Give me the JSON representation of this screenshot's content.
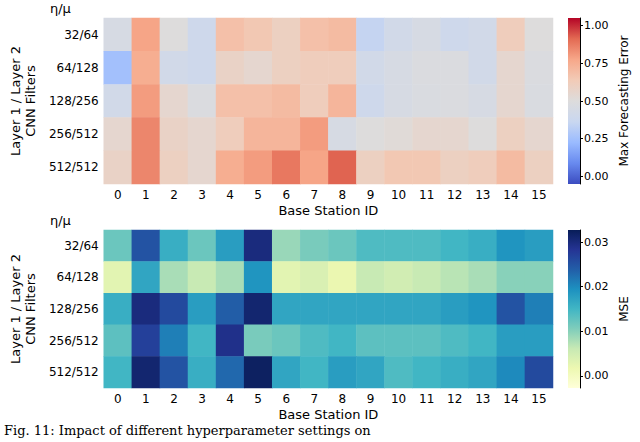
{
  "chart_data": [
    {
      "type": "heatmap",
      "x_label": "Base Station ID",
      "y_label": "Layer 1 / Layer 2\nCNN Filters",
      "y_title": "η/μ",
      "categories": [
        0,
        1,
        2,
        3,
        4,
        5,
        6,
        7,
        8,
        9,
        10,
        11,
        12,
        13,
        14,
        15
      ],
      "rows": [
        "32/64",
        "64/128",
        "128/256",
        "256/512",
        "512/512"
      ],
      "cells": [
        [
          0.45,
          0.78,
          0.5,
          0.4,
          0.68,
          0.65,
          0.6,
          0.68,
          0.7,
          0.35,
          0.42,
          0.45,
          0.4,
          0.42,
          0.62,
          0.5
        ],
        [
          0.25,
          0.75,
          0.42,
          0.4,
          0.58,
          0.55,
          0.6,
          0.62,
          0.62,
          0.42,
          0.45,
          0.48,
          0.48,
          0.42,
          0.55,
          0.48
        ],
        [
          0.42,
          0.8,
          0.55,
          0.48,
          0.68,
          0.68,
          0.7,
          0.62,
          0.72,
          0.4,
          0.45,
          0.47,
          0.48,
          0.45,
          0.55,
          0.47
        ],
        [
          0.55,
          0.85,
          0.58,
          0.55,
          0.62,
          0.72,
          0.72,
          0.8,
          0.45,
          0.5,
          0.52,
          0.55,
          0.55,
          0.5,
          0.6,
          0.55
        ],
        [
          0.58,
          0.85,
          0.6,
          0.55,
          0.75,
          0.8,
          0.88,
          0.78,
          0.92,
          0.6,
          0.65,
          0.65,
          0.6,
          0.62,
          0.7,
          0.6
        ]
      ],
      "colorbar": {
        "label": "Max Forecasting Error",
        "range": [
          -0.05,
          1.05
        ],
        "ticks": [
          {
            "value": 0,
            "label": "0.00"
          },
          {
            "value": 0.25,
            "label": "0.25"
          },
          {
            "value": 0.5,
            "label": "0.50"
          },
          {
            "value": 0.75,
            "label": "0.75"
          },
          {
            "value": 1,
            "label": "1.00"
          }
        ]
      }
    },
    {
      "type": "heatmap",
      "x_label": "Base Station ID",
      "y_label": "Layer 1 / Layer 2\nCNN Filters",
      "y_title": "η/μ",
      "categories": [
        0,
        1,
        2,
        3,
        4,
        5,
        6,
        7,
        8,
        9,
        10,
        11,
        12,
        13,
        14,
        15
      ],
      "rows": [
        "32/64",
        "64/128",
        "128/256",
        "256/512",
        "512/512"
      ],
      "cells": [
        [
          0.012,
          0.025,
          0.016,
          0.012,
          0.018,
          0.03,
          0.009,
          0.011,
          0.012,
          0.014,
          0.014,
          0.014,
          0.015,
          0.016,
          0.019,
          0.018
        ],
        [
          0.003,
          0.017,
          0.008,
          0.006,
          0.008,
          0.019,
          0.003,
          0.004,
          0.002,
          0.006,
          0.005,
          0.006,
          0.007,
          0.008,
          0.01,
          0.01
        ],
        [
          0.016,
          0.03,
          0.026,
          0.018,
          0.024,
          0.031,
          0.017,
          0.017,
          0.017,
          0.017,
          0.017,
          0.017,
          0.018,
          0.019,
          0.025,
          0.021
        ],
        [
          0.013,
          0.027,
          0.021,
          0.015,
          0.029,
          0.011,
          0.012,
          0.014,
          0.015,
          0.013,
          0.013,
          0.013,
          0.014,
          0.015,
          0.018,
          0.018
        ],
        [
          0.015,
          0.031,
          0.025,
          0.016,
          0.023,
          0.032,
          0.017,
          0.015,
          0.018,
          0.017,
          0.014,
          0.015,
          0.016,
          0.017,
          0.02,
          0.026
        ]
      ],
      "colorbar": {
        "label": "MSE",
        "range": [
          -0.0027,
          0.0327
        ],
        "ticks": [
          {
            "value": 0,
            "label": "0.00"
          },
          {
            "value": 0.01,
            "label": "0.01"
          },
          {
            "value": 0.02,
            "label": "0.02"
          },
          {
            "value": 0.03,
            "label": "0.03"
          }
        ]
      }
    }
  ],
  "caption": "Fig. 11: Impact of different hyperparameter settings on"
}
